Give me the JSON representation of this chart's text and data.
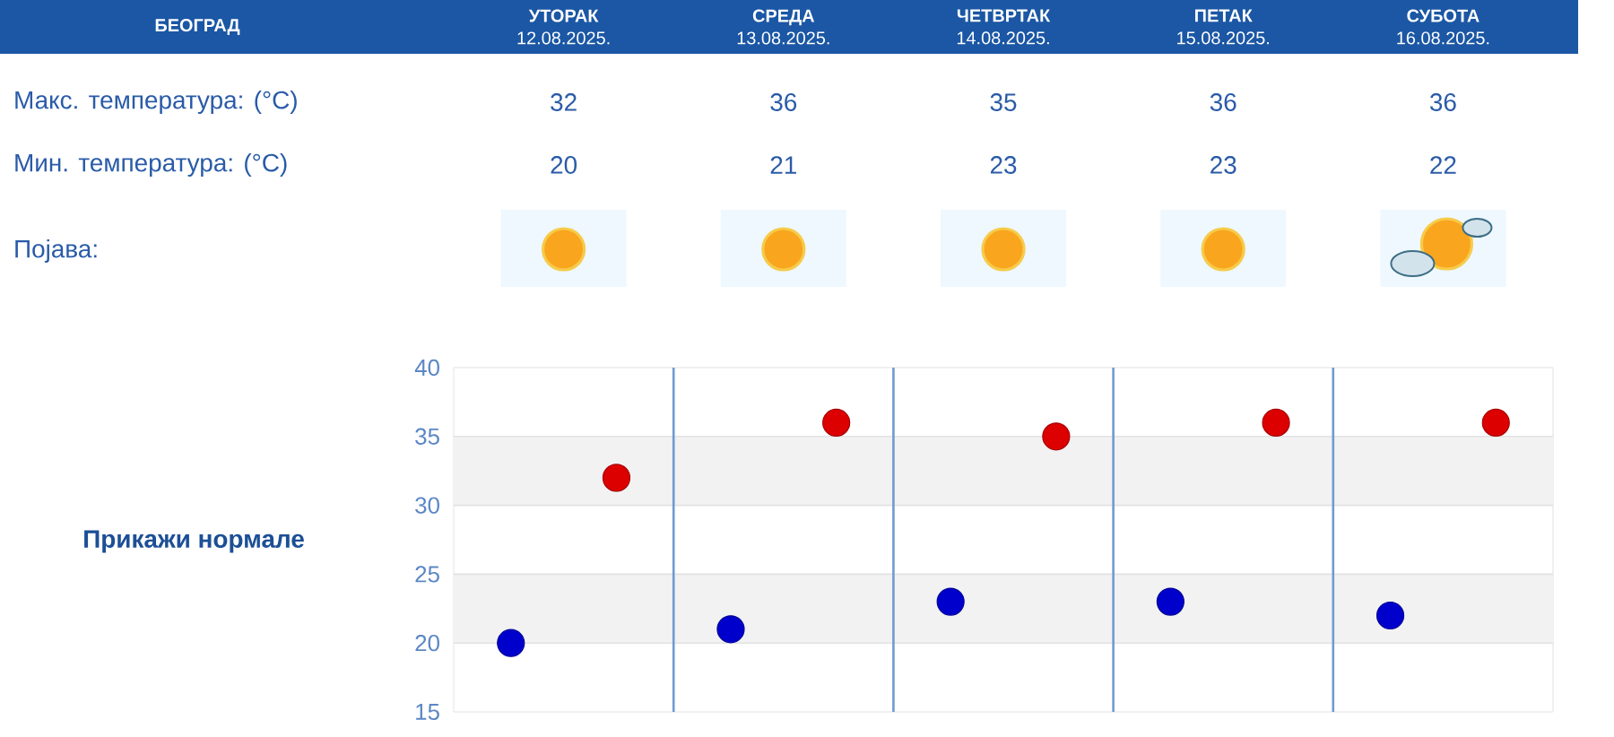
{
  "chart_data": {
    "type": "scatter",
    "title": "БЕОГРАД",
    "categories": [
      null,
      null,
      null,
      null,
      null
    ],
    "series": [
      {
        "color": "#dd0000",
        "values": [
          32,
          36,
          35,
          36,
          36
        ]
      },
      {
        "color": "#0000cc",
        "values": [
          20,
          21,
          23,
          23,
          22
        ]
      }
    ],
    "ylim": [
      15,
      40
    ],
    "yticks": [
      15,
      20,
      25,
      30,
      35,
      40
    ],
    "grid": true,
    "marker": "circle",
    "data_labels": true,
    "bands": [
      {
        "axis": "y",
        "from": 20,
        "to": 25,
        "color": "#f2f2f2"
      },
      {
        "axis": "y",
        "from": 30,
        "to": 35,
        "color": "#f2f2f2"
      }
    ],
    "annotations": [
      "**УТОРАК** 12.08.2025.",
      "**СРЕДА** 13.08.2025.",
      "**ЧЕТВРТАК** 14.08.2025.",
      "**ПЕТАК** 15.08.2025.",
      "**СУБОТА** 16.08.2025.",
      "Макс. температура: (°C)",
      "Мин. температура: (°C)",
      "Појава:",
      "Прикажи нормале"
    ]
  }
}
